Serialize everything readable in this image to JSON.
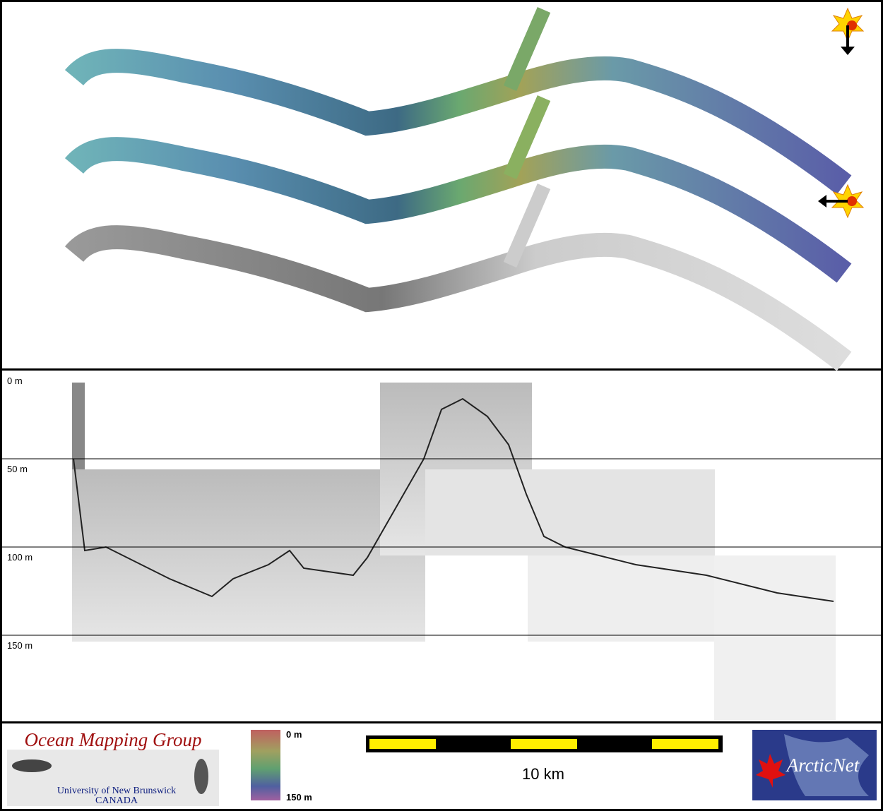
{
  "profile": {
    "depth_labels": [
      "0 m",
      "50 m",
      "100 m",
      "150 m"
    ]
  },
  "colorbar": {
    "top": "0 m",
    "bottom": "150 m"
  },
  "scale_bar": {
    "label": "10 km"
  },
  "logos": {
    "omg_title": "Ocean Mapping Group",
    "omg_line1": "University of New Brunswick",
    "omg_line2": "CANADA",
    "arcticnet": "ArcticNet"
  }
}
